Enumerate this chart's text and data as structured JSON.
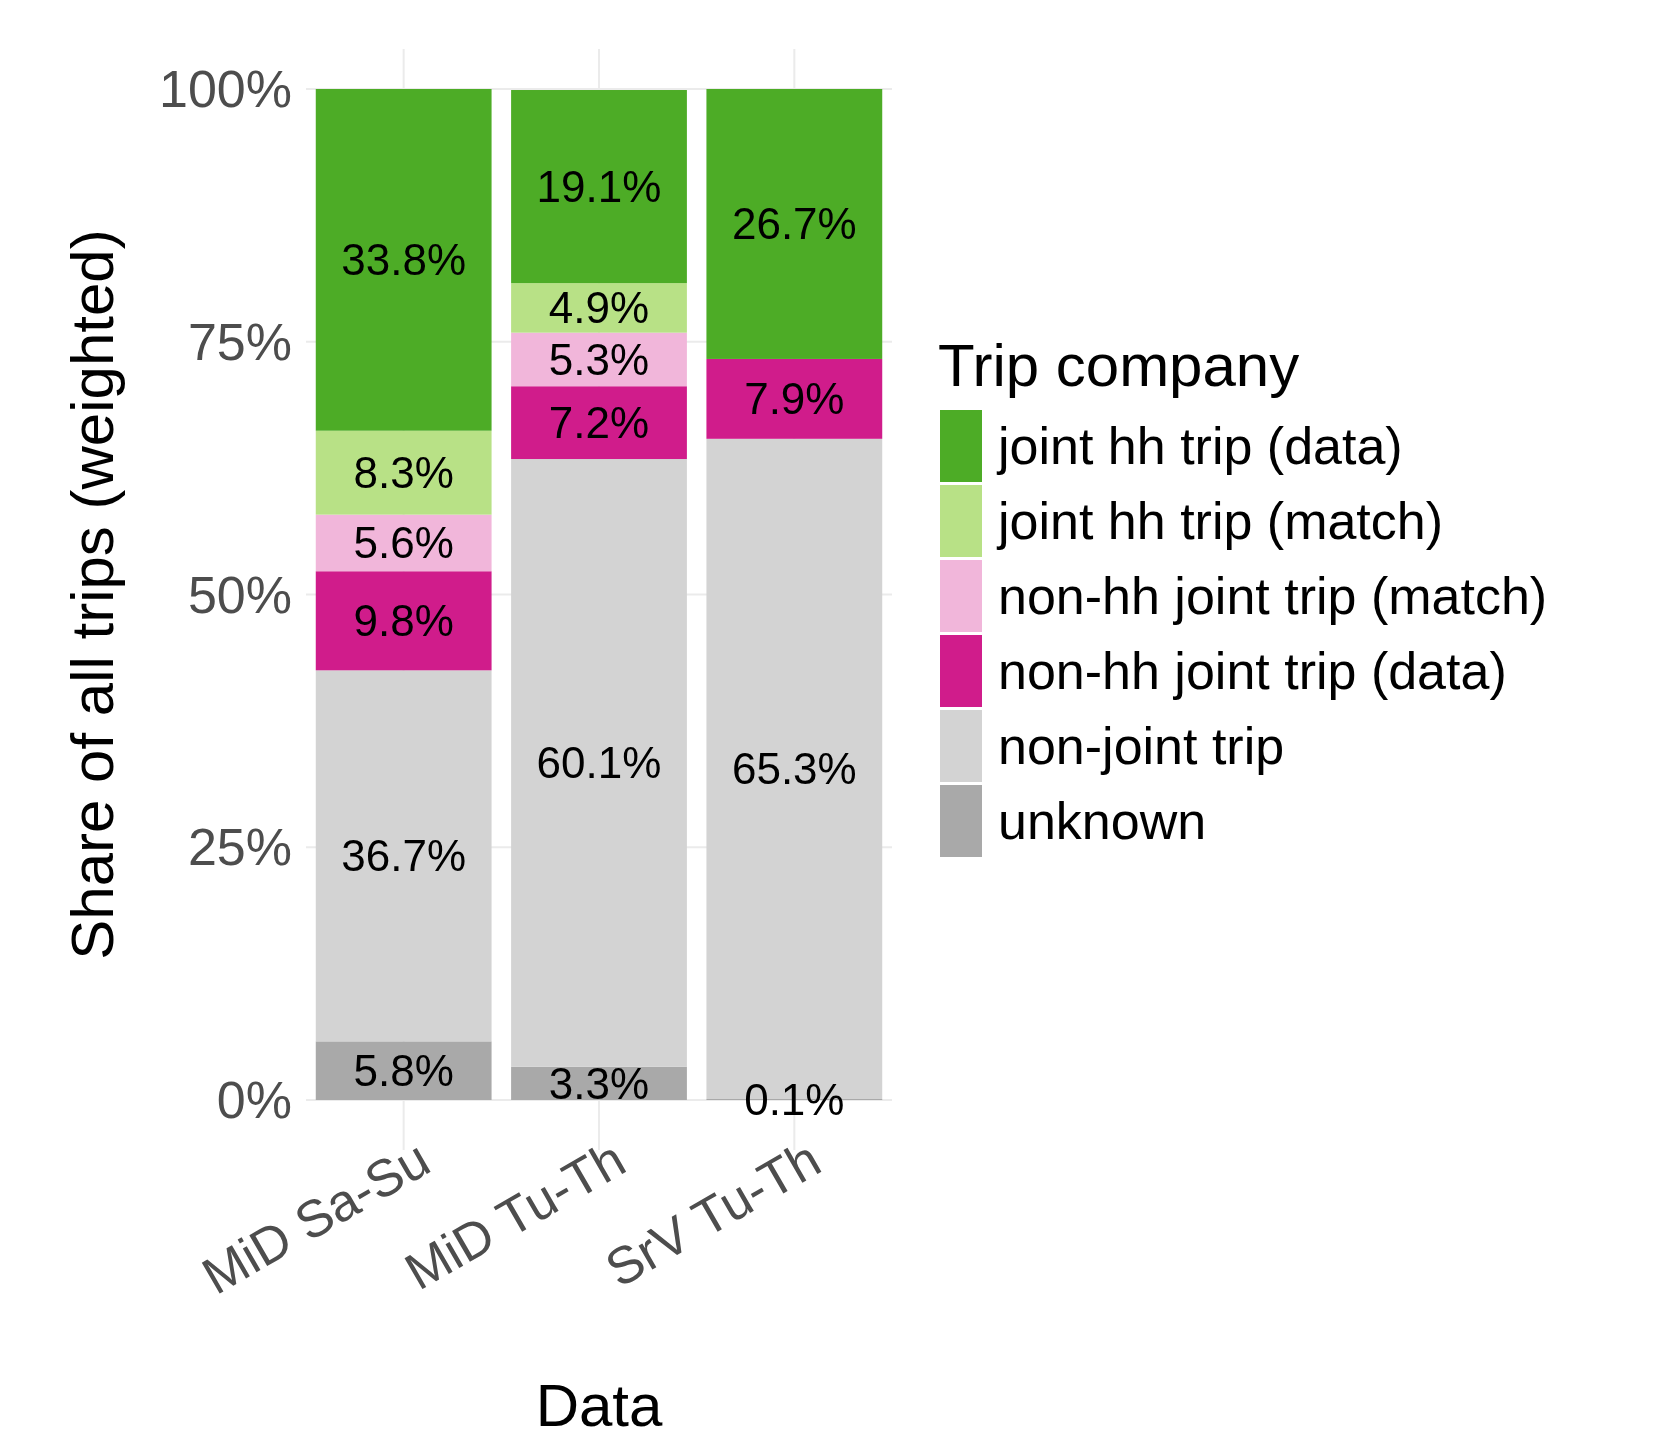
{
  "chart_data": {
    "type": "bar",
    "stacked": true,
    "xlabel": "Data",
    "ylabel": "Share of all trips (weighted)",
    "legend_title": "Trip company",
    "legend": "right",
    "grid": true,
    "categories": [
      "MiD Sa-Su",
      "MiD Tu-Th",
      "SrV Tu-Th"
    ],
    "ylim": [
      0,
      100
    ],
    "yticks": [
      {
        "value": 0,
        "label": "0%"
      },
      {
        "value": 25,
        "label": "25%"
      },
      {
        "value": 50,
        "label": "50%"
      },
      {
        "value": 75,
        "label": "75%"
      },
      {
        "value": 100,
        "label": "100%"
      }
    ],
    "series": [
      {
        "name": "unknown",
        "color": "#a9a9a9",
        "values": [
          5.8,
          3.3,
          0.1
        ],
        "value_labels": [
          "5.8%",
          "3.3%",
          "0.1%"
        ]
      },
      {
        "name": "non-joint trip",
        "color": "#d3d3d3",
        "values": [
          36.7,
          60.1,
          65.3
        ],
        "value_labels": [
          "36.7%",
          "60.1%",
          "65.3%"
        ]
      },
      {
        "name": "non-hh joint trip (data)",
        "color": "#d01c8b",
        "values": [
          9.8,
          7.2,
          7.9
        ],
        "value_labels": [
          "9.8%",
          "7.2%",
          "7.9%"
        ]
      },
      {
        "name": "non-hh joint trip (match)",
        "color": "#f1b6da",
        "values": [
          5.6,
          5.3,
          null
        ],
        "value_labels": [
          "5.6%",
          "5.3%",
          null
        ]
      },
      {
        "name": "joint hh trip (match)",
        "color": "#b8e186",
        "values": [
          8.3,
          4.9,
          null
        ],
        "value_labels": [
          "8.3%",
          "4.9%",
          null
        ]
      },
      {
        "name": "joint hh trip (data)",
        "color": "#4dac26",
        "values": [
          33.8,
          19.1,
          26.7
        ],
        "value_labels": [
          "33.8%",
          "19.1%",
          "26.7%"
        ]
      }
    ]
  }
}
